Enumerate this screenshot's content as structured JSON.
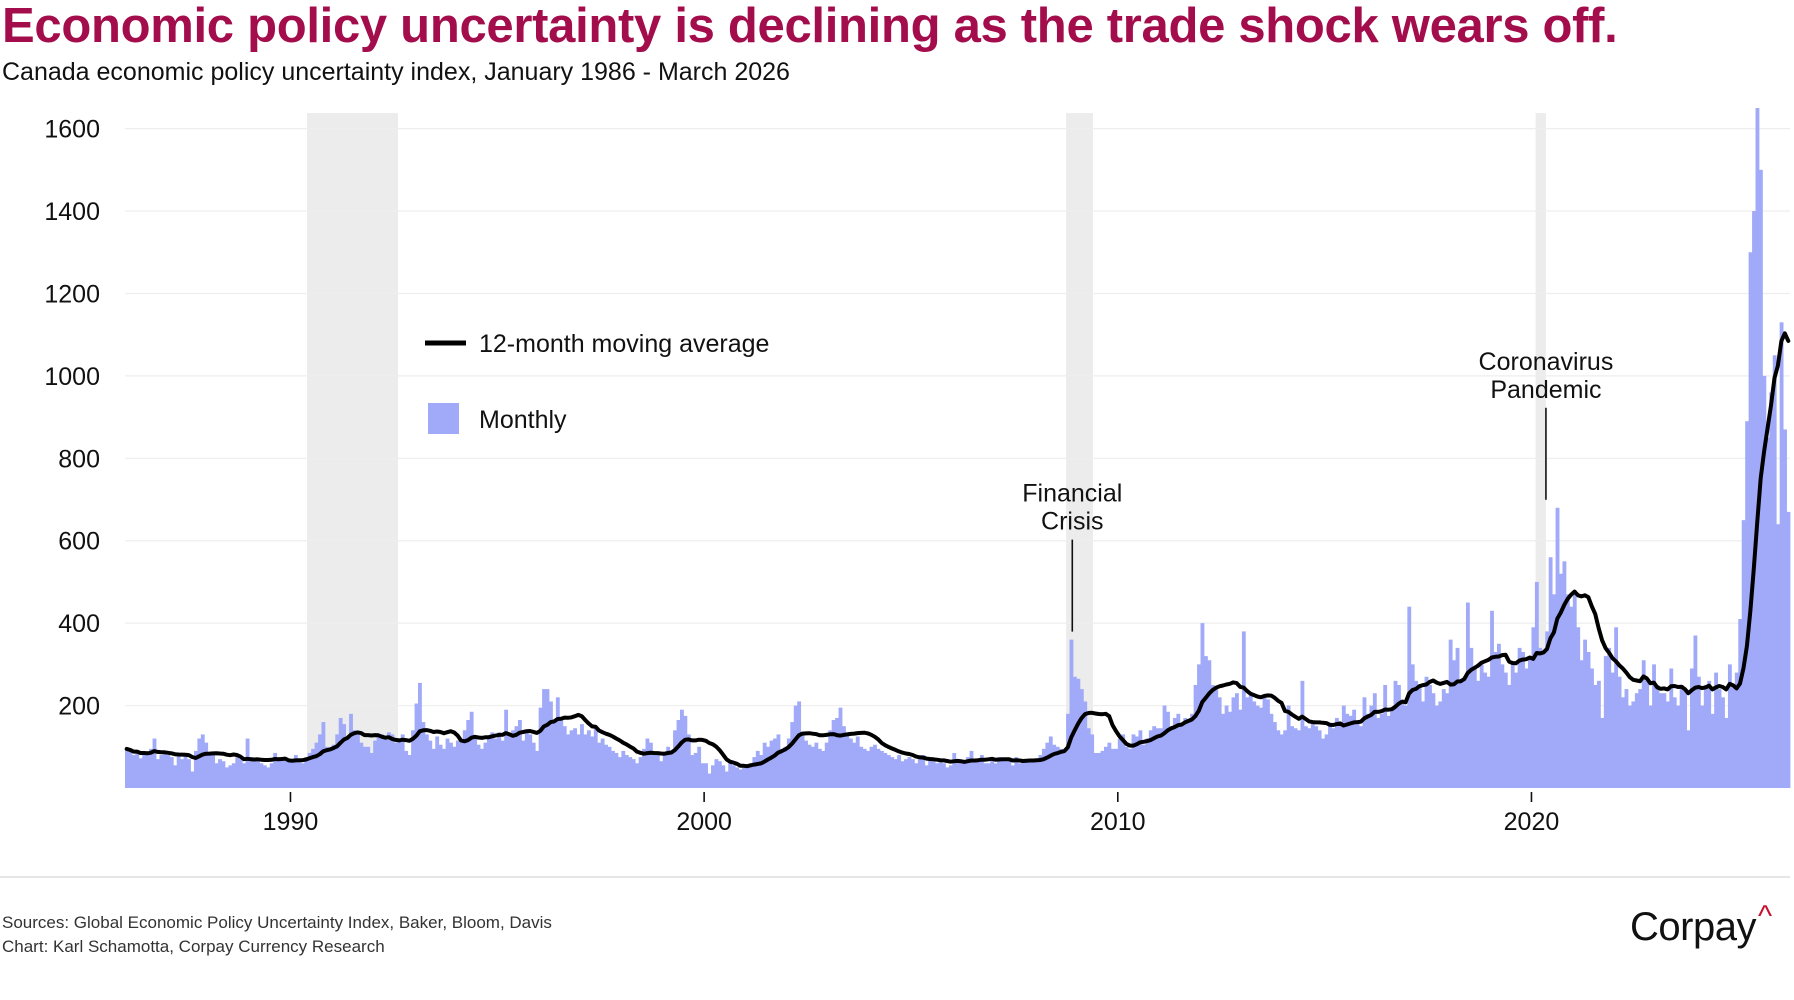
{
  "title": "Economic policy uncertainty is declining as the trade shock wears off.",
  "subtitle_bold": "Canada economic policy uncertainty index,",
  "subtitle_rest": " January 1986 - March 2026",
  "footer": {
    "sources": "Sources: Global Economic Policy Uncertainty Index, Baker, Bloom, Davis",
    "credit": "Chart: Karl Schamotta, Corpay Currency Research"
  },
  "logo": {
    "text": "Corpay",
    "caret": "^"
  },
  "colors": {
    "title": "#a30d4b",
    "bars": "#a0aaf8",
    "line": "#000000",
    "recession": "#ececec",
    "grid": "#eeeeee",
    "logo_caret": "#c8102e"
  },
  "chart_data": {
    "type": "bar",
    "title": "Economic policy uncertainty is declining as the trade shock wears off.",
    "xlabel": "",
    "ylabel": "",
    "x_start": "1986-01",
    "x_end": "2026-03",
    "xlim": [
      1986.0,
      2026.25
    ],
    "ylim": [
      0,
      1640
    ],
    "yticks": [
      200,
      400,
      600,
      800,
      1000,
      1200,
      1400,
      1600
    ],
    "ytick_labels": [
      "200",
      "400",
      "600",
      "800",
      "1000",
      "1200",
      "1400",
      "1600"
    ],
    "xticks": [
      1990,
      2000,
      2010,
      2020
    ],
    "xtick_labels": [
      "1990",
      "2000",
      "2010",
      "2020"
    ],
    "grid": true,
    "legend_position": "upper-left",
    "legend": [
      {
        "label": "12-month moving average",
        "kind": "line"
      },
      {
        "label": "Monthly",
        "kind": "bar"
      }
    ],
    "shaded_periods": [
      {
        "start": 1990.4,
        "end": 1992.6
      },
      {
        "start": 2008.75,
        "end": 2009.4
      },
      {
        "start": 2020.1,
        "end": 2020.35
      }
    ],
    "annotations": [
      {
        "lines": [
          "Financial",
          "Crisis"
        ],
        "x": 2008.9,
        "y": 360
      },
      {
        "lines": [
          "Coronavirus",
          "Pandemic"
        ],
        "x": 2020.35,
        "y": 680
      }
    ],
    "series": [
      {
        "name": "Monthly",
        "type": "bar",
        "yearly_monthly_values": {
          "1986": [
            95,
            90,
            80,
            88,
            72,
            85,
            80,
            95,
            120,
            70,
            80,
            85
          ],
          "1987": [
            80,
            75,
            55,
            78,
            70,
            80,
            70,
            40,
            90,
            120,
            130,
            110
          ],
          "1988": [
            85,
            80,
            60,
            70,
            65,
            50,
            55,
            60,
            75,
            70,
            60,
            120
          ],
          "1989": [
            75,
            70,
            65,
            60,
            55,
            50,
            60,
            85,
            70,
            75,
            70,
            70
          ],
          "1990": [
            65,
            80,
            70,
            60,
            75,
            85,
            95,
            110,
            130,
            160,
            100,
            95
          ],
          "1991": [
            105,
            130,
            170,
            155,
            120,
            180,
            140,
            135,
            110,
            100,
            100,
            85
          ],
          "1992": [
            115,
            125,
            130,
            125,
            135,
            130,
            110,
            120,
            130,
            90,
            80,
            140
          ],
          "1993": [
            205,
            255,
            160,
            130,
            115,
            95,
            125,
            105,
            95,
            120,
            110,
            100
          ],
          "1994": [
            115,
            110,
            140,
            165,
            185,
            120,
            105,
            95,
            110,
            125,
            135,
            120
          ],
          "1995": [
            135,
            115,
            190,
            130,
            140,
            150,
            165,
            115,
            135,
            130,
            110,
            90
          ],
          "1996": [
            195,
            240,
            240,
            210,
            160,
            220,
            170,
            150,
            130,
            140,
            145,
            130
          ],
          "1997": [
            155,
            130,
            140,
            125,
            150,
            110,
            120,
            105,
            100,
            90,
            85,
            75
          ],
          "1998": [
            90,
            80,
            75,
            70,
            60,
            75,
            95,
            120,
            110,
            85,
            80,
            65
          ],
          "1999": [
            85,
            100,
            90,
            140,
            165,
            190,
            175,
            130,
            80,
            85,
            100,
            60
          ],
          "2000": [
            60,
            35,
            55,
            70,
            65,
            55,
            40,
            60,
            55,
            50,
            45,
            55
          ],
          "2001": [
            50,
            60,
            75,
            90,
            80,
            110,
            100,
            115,
            120,
            130,
            90,
            100
          ],
          "2002": [
            120,
            160,
            200,
            210,
            130,
            115,
            105,
            100,
            110,
            95,
            90,
            110
          ],
          "2003": [
            140,
            165,
            170,
            195,
            150,
            130,
            120,
            110,
            125,
            100,
            95,
            90
          ],
          "2004": [
            100,
            105,
            95,
            90,
            85,
            80,
            75,
            70,
            80,
            65,
            70,
            75
          ],
          "2005": [
            70,
            60,
            75,
            80,
            55,
            70,
            65,
            60,
            65,
            60,
            50,
            55
          ],
          "2006": [
            85,
            70,
            65,
            60,
            75,
            90,
            65,
            70,
            80,
            60,
            60,
            70
          ],
          "2007": [
            60,
            75,
            70,
            65,
            70,
            55,
            75,
            60,
            65,
            70,
            65,
            70
          ],
          "2008": [
            70,
            80,
            95,
            110,
            125,
            105,
            100,
            95,
            90,
            180,
            360,
            270
          ],
          "2009": [
            265,
            240,
            210,
            145,
            130,
            85,
            85,
            90,
            100,
            110,
            95,
            95
          ],
          "2010": [
            120,
            130,
            100,
            95,
            130,
            125,
            140,
            105,
            120,
            140,
            150,
            145
          ],
          "2011": [
            145,
            200,
            185,
            150,
            170,
            180,
            155,
            170,
            165,
            180,
            250,
            300
          ],
          "2012": [
            400,
            320,
            310,
            250,
            240,
            220,
            180,
            200,
            185,
            220,
            230,
            190
          ],
          "2013": [
            380,
            220,
            230,
            210,
            200,
            195,
            220,
            215,
            180,
            160,
            140,
            130
          ],
          "2014": [
            140,
            200,
            150,
            145,
            140,
            260,
            150,
            145,
            160,
            150,
            140,
            120
          ],
          "2015": [
            130,
            150,
            145,
            170,
            160,
            200,
            180,
            175,
            190,
            160,
            150,
            220
          ],
          "2016": [
            180,
            200,
            230,
            170,
            180,
            250,
            175,
            190,
            260,
            250,
            210,
            200
          ],
          "2017": [
            440,
            300,
            260,
            250,
            210,
            270,
            250,
            230,
            200,
            210,
            240,
            230
          ],
          "2018": [
            360,
            310,
            340,
            260,
            270,
            450,
            340,
            290,
            260,
            300,
            280,
            270
          ],
          "2019": [
            430,
            330,
            350,
            300,
            280,
            250,
            300,
            280,
            340,
            330,
            290,
            320
          ],
          "2020": [
            390,
            500,
            340,
            330,
            380,
            560,
            470,
            680,
            520,
            550,
            470,
            440
          ],
          "2021": [
            480,
            390,
            310,
            360,
            330,
            290,
            250,
            260,
            170,
            320,
            340,
            280
          ],
          "2022": [
            390,
            270,
            220,
            240,
            200,
            210,
            230,
            240,
            310,
            260,
            200,
            300
          ],
          "2023": [
            250,
            230,
            230,
            210,
            290,
            220,
            200,
            250,
            240,
            140,
            290,
            370
          ],
          "2024": [
            270,
            200,
            250,
            260,
            180,
            280,
            240,
            220,
            170,
            300,
            250,
            280
          ],
          "2025": [
            410,
            650,
            890,
            1300,
            1400,
            1650,
            1500,
            1000,
            850,
            960,
            1050,
            640
          ],
          "2026": [
            1130,
            870,
            670
          ]
        }
      },
      {
        "name": "12-month moving average",
        "type": "line"
      }
    ]
  }
}
